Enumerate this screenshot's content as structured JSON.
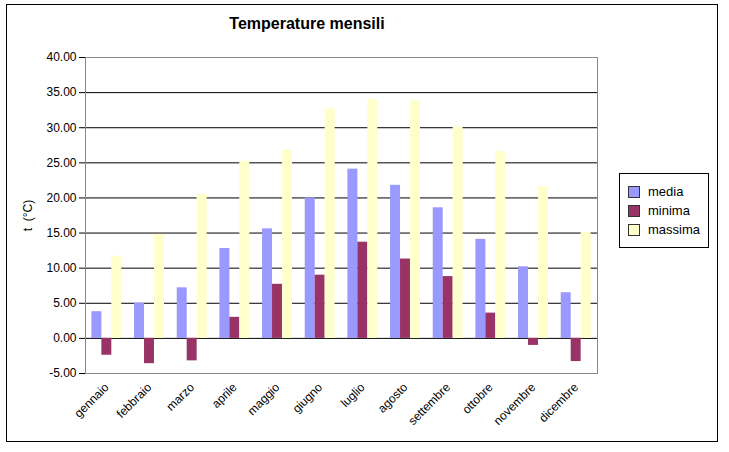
{
  "chart_data": {
    "type": "bar",
    "title": "Temperature mensili",
    "y_label": "t  (°C)",
    "categories": [
      "gennaio",
      "febbraio",
      "marzo",
      "aprile",
      "maggio",
      "giugno",
      "luglio",
      "agosto",
      "settembre",
      "ottobre",
      "novembre",
      "dicembre"
    ],
    "series": [
      {
        "name": "media",
        "color": "#9999ff",
        "values": [
          3.8,
          5.0,
          7.2,
          12.8,
          15.6,
          20.0,
          24.1,
          21.8,
          18.6,
          14.1,
          10.2,
          6.5
        ]
      },
      {
        "name": "minima",
        "color": "#993366",
        "values": [
          -2.4,
          -3.6,
          -3.2,
          3.0,
          7.7,
          9.0,
          13.7,
          11.3,
          8.8,
          3.6,
          -1.0,
          -3.3
        ]
      },
      {
        "name": "massima",
        "color": "#ffffcc",
        "values": [
          11.7,
          14.8,
          20.5,
          25.2,
          26.8,
          32.7,
          34.0,
          33.8,
          30.1,
          26.6,
          21.6,
          15.1
        ]
      }
    ],
    "ylim": [
      -5,
      40
    ],
    "yticks": [
      {
        "value": -5,
        "label": "-5.00"
      },
      {
        "value": 0,
        "label": "0.00"
      },
      {
        "value": 5,
        "label": "5.00"
      },
      {
        "value": 10,
        "label": "10.00"
      },
      {
        "value": 15,
        "label": "15.00"
      },
      {
        "value": 20,
        "label": "20.00"
      },
      {
        "value": 25,
        "label": "25.00"
      },
      {
        "value": 30,
        "label": "30.00"
      },
      {
        "value": 35,
        "label": "35.00"
      },
      {
        "value": 40,
        "label": "40.00"
      }
    ],
    "grid": true,
    "legend": "right"
  }
}
